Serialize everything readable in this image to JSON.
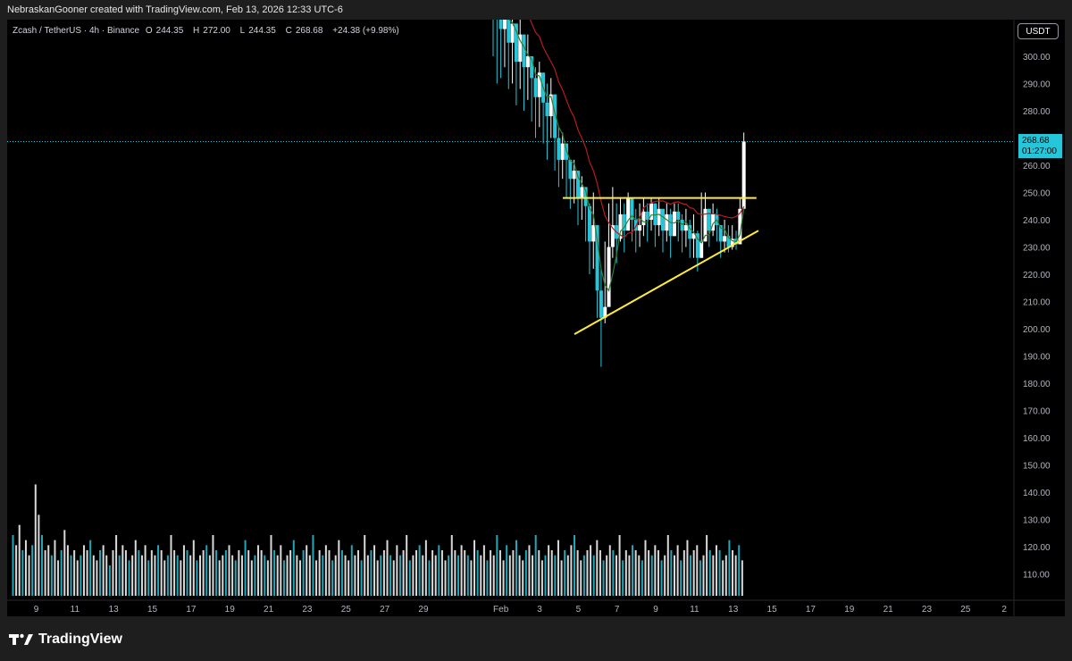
{
  "header": {
    "caption": "NebraskanGooner created with TradingView.com, Feb 13, 2026 12:33 UTC-6"
  },
  "legend": {
    "symbol": "Zcash / TetherUS · 4h · Binance",
    "open_label": "O",
    "open": "244.35",
    "high_label": "H",
    "high": "272.00",
    "low_label": "L",
    "low": "244.35",
    "close_label": "C",
    "close": "268.68",
    "change": "+24.38 (+9.98%)"
  },
  "price_scale": {
    "currency": "USDT",
    "last_price": "268.68",
    "countdown": "01:27:00"
  },
  "footer": {
    "brand": "TradingView"
  },
  "colors": {
    "background": "#000000",
    "up": "#ffffff",
    "down": "#26c6da",
    "ma_fast": "#2e7d32",
    "ma_slow": "#b71c1c",
    "trendline": "#ffeb3b",
    "last_price_line": "#26c6da"
  },
  "icons": {
    "logo": "tradingview-logo-icon"
  },
  "chart_data": {
    "type": "candlestick",
    "timeframe": "4h",
    "y_ticks": [
      110,
      120,
      130,
      140,
      150,
      160,
      170,
      180,
      190,
      200,
      210,
      220,
      230,
      240,
      250,
      260,
      270,
      280,
      290,
      300
    ],
    "y_tick_labels": [
      "110.00",
      "120.00",
      "130.00",
      "140.00",
      "150.00",
      "160.00",
      "170.00",
      "180.00",
      "190.00",
      "200.00",
      "210.00",
      "220.00",
      "230.00",
      "240.00",
      "250.00",
      "260.00",
      "270.00",
      "280.00",
      "290.00",
      "300.00"
    ],
    "ylim": [
      102,
      320
    ],
    "x_tick_labels": [
      "9",
      "11",
      "13",
      "15",
      "17",
      "19",
      "21",
      "23",
      "25",
      "27",
      "29",
      "Feb",
      "3",
      "5",
      "7",
      "9",
      "11",
      "13",
      "15",
      "17",
      "19",
      "21",
      "23",
      "25",
      "2"
    ],
    "x_tick_days": [
      -23,
      -21,
      -19,
      -17,
      -15,
      -13,
      -11,
      -9,
      -7,
      -5,
      -3,
      1,
      3,
      5,
      7,
      9,
      11,
      13,
      15,
      17,
      19,
      21,
      23,
      25,
      27
    ],
    "x_range_days": [
      -24.5,
      27.5
    ],
    "volume_start_day": -24.5,
    "price_start_day": 0.6,
    "last_day": 13.55,
    "last_close": 268.68,
    "closes": [
      324,
      318,
      310,
      322,
      305,
      312,
      298,
      308,
      296,
      300,
      292,
      285,
      294,
      283,
      278,
      286,
      270,
      262,
      268,
      262,
      255,
      258,
      248,
      252,
      245,
      232,
      238,
      214,
      204,
      208,
      230,
      238,
      233,
      242,
      236,
      248,
      240,
      236,
      238,
      243,
      240,
      246,
      238,
      244,
      236,
      242,
      234,
      243,
      240,
      236,
      238,
      233,
      235,
      226,
      232,
      244,
      236,
      242,
      238,
      232,
      234,
      230,
      233,
      231,
      244,
      268.68
    ],
    "lows": [
      300,
      290,
      292,
      296,
      288,
      290,
      282,
      288,
      280,
      284,
      276,
      270,
      274,
      268,
      262,
      270,
      258,
      252,
      255,
      248,
      244,
      246,
      238,
      240,
      232,
      220,
      222,
      204,
      186,
      202,
      212,
      226,
      224,
      232,
      228,
      236,
      232,
      228,
      230,
      234,
      232,
      236,
      230,
      234,
      228,
      232,
      226,
      234,
      232,
      228,
      230,
      226,
      226,
      221,
      226,
      236,
      230,
      234,
      232,
      226,
      228,
      228,
      229,
      229,
      236,
      244.35
    ],
    "highs": [
      330,
      328,
      326,
      330,
      320,
      322,
      312,
      316,
      306,
      308,
      300,
      296,
      298,
      290,
      290,
      292,
      280,
      274,
      272,
      268,
      262,
      262,
      256,
      256,
      252,
      246,
      250,
      232,
      222,
      232,
      246,
      252,
      246,
      248,
      246,
      250,
      248,
      244,
      246,
      248,
      246,
      248,
      244,
      248,
      244,
      246,
      244,
      246,
      246,
      242,
      244,
      240,
      242,
      236,
      250,
      250,
      244,
      246,
      244,
      238,
      240,
      238,
      238,
      236,
      248,
      272
    ],
    "volume_labels_axis": "none",
    "volumes": [
      12,
      10,
      14,
      9,
      11,
      8,
      10,
      22,
      16,
      12,
      9,
      10,
      8,
      11,
      7,
      9,
      13,
      10,
      8,
      9,
      7,
      8,
      10,
      9,
      11,
      8,
      7,
      9,
      10,
      8,
      6,
      9,
      12,
      8,
      10,
      9,
      7,
      8,
      11,
      9,
      8,
      10,
      7,
      9,
      8,
      10,
      9,
      7,
      8,
      12,
      9,
      8,
      7,
      10,
      9,
      8,
      11,
      7,
      8,
      9,
      10,
      8,
      12,
      9,
      7,
      8,
      9,
      10,
      8,
      7,
      9,
      8,
      11,
      9,
      7,
      8,
      10,
      9,
      8,
      7,
      12,
      9,
      8,
      10,
      7,
      8,
      9,
      11,
      8,
      7,
      9,
      10,
      8,
      12,
      7,
      9,
      8,
      10,
      9,
      7,
      8,
      11,
      9,
      8,
      7,
      10,
      8,
      9,
      7,
      12,
      8,
      9,
      10,
      7,
      8,
      9,
      11,
      8,
      7,
      10,
      8,
      9,
      12,
      7,
      8,
      9,
      10,
      8,
      11,
      7,
      9,
      8,
      10,
      9,
      7,
      8,
      12,
      9,
      8,
      10,
      9,
      8,
      7,
      11,
      9,
      8,
      10,
      7,
      9,
      8,
      12,
      9,
      7,
      10,
      8,
      9,
      11,
      8,
      7,
      9,
      10,
      8,
      12,
      9,
      7,
      8,
      10,
      9,
      8,
      11,
      7,
      9,
      8,
      10,
      12,
      9,
      7,
      8,
      9,
      10,
      8,
      11,
      9,
      7,
      8,
      10,
      9,
      8,
      12,
      7,
      9,
      8,
      10,
      9,
      8,
      7,
      11,
      9,
      8,
      10,
      9,
      7,
      8,
      12,
      9,
      8,
      10,
      7,
      9,
      11,
      8,
      9,
      10,
      7,
      8,
      12,
      9,
      8,
      10,
      9,
      7,
      8,
      11,
      9,
      8,
      10,
      7,
      9,
      8,
      12,
      9,
      7,
      8,
      10,
      9,
      8,
      11,
      7,
      9,
      8,
      10,
      9,
      14,
      22,
      12,
      10,
      9,
      8,
      11,
      16,
      12,
      10,
      9,
      8,
      7,
      10,
      9,
      11,
      8,
      7,
      12,
      16,
      18,
      14,
      12,
      11,
      9,
      13,
      10,
      8,
      7,
      9,
      11,
      8,
      10,
      9,
      7,
      8,
      10,
      9,
      11,
      8,
      7,
      9,
      10,
      12,
      9,
      8,
      10,
      11,
      9,
      8,
      7,
      10,
      9,
      8,
      11,
      10,
      9,
      8,
      12
    ]
  }
}
